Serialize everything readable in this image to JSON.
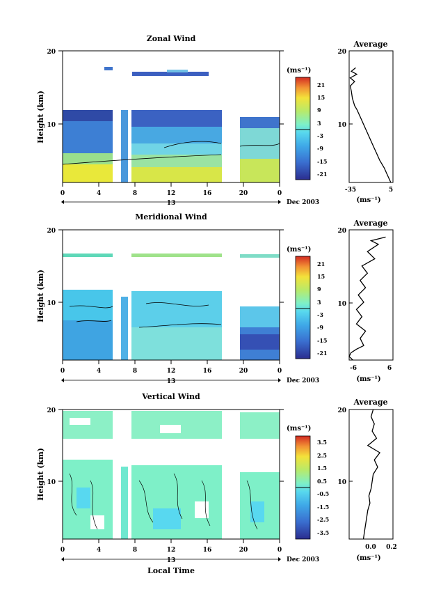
{
  "date_label": "Dec 2003",
  "xlabel": "Local Time",
  "chart_data": [
    {
      "type": "heatmap",
      "title": "Zonal Wind",
      "ylabel": "Height (km)",
      "unit": "(ms⁻¹)",
      "xticks": [
        "0",
        "4",
        "8",
        "12",
        "16",
        "20",
        "0"
      ],
      "day_label": "13",
      "yticks": [
        "10",
        "20"
      ],
      "ylim": [
        2,
        20
      ],
      "colorbar_ticks": [
        "21",
        "15",
        "9",
        "3",
        "-3",
        "-9",
        "-15",
        "-21"
      ],
      "colorbar_range": [
        -24,
        24
      ],
      "average": {
        "title": "Average",
        "xticks": [
          "-35",
          "5"
        ],
        "xlim": [
          -35,
          5
        ],
        "xunit": "(ms⁻¹)",
        "yticks": [
          "10",
          "20"
        ],
        "height_km": [
          2,
          3,
          4,
          5,
          6,
          7,
          8,
          9,
          10,
          11,
          12,
          12.5,
          13.5,
          14.5,
          15.2,
          15.8,
          16.3,
          16.8,
          17.2,
          17.7
        ],
        "wind_ms": [
          3,
          0,
          -3,
          -7,
          -10,
          -13,
          -16,
          -19,
          -22,
          -25,
          -28,
          -30,
          -32,
          -33,
          -34,
          -30,
          -34,
          -28,
          -33,
          -29
        ]
      }
    },
    {
      "type": "heatmap",
      "title": "Meridional Wind",
      "ylabel": "Height (km)",
      "unit": "(ms⁻¹)",
      "xticks": [
        "0",
        "4",
        "8",
        "12",
        "16",
        "20",
        "0"
      ],
      "day_label": "13",
      "yticks": [
        "10",
        "20"
      ],
      "ylim": [
        2,
        20
      ],
      "colorbar_ticks": [
        "21",
        "15",
        "9",
        "3",
        "-3",
        "-9",
        "-15",
        "-21"
      ],
      "colorbar_range": [
        -24,
        24
      ],
      "average": {
        "title": "Average",
        "xticks": [
          "-6",
          "6"
        ],
        "xlim": [
          -6,
          6
        ],
        "xunit": "(ms⁻¹)",
        "yticks": [
          "10",
          "20"
        ],
        "height_km": [
          2,
          2.5,
          3,
          3.5,
          4,
          5,
          6,
          7,
          8,
          9,
          10,
          11,
          12,
          13,
          14,
          15,
          16,
          17,
          18,
          18.5,
          19
        ],
        "wind_ms": [
          -5,
          -6,
          -5.5,
          -4,
          -2,
          -3,
          -1.5,
          -4,
          -2.5,
          -4,
          -2,
          -3.5,
          -1.5,
          -3,
          -1,
          -2.5,
          1,
          -1,
          2,
          0,
          4
        ]
      }
    },
    {
      "type": "heatmap",
      "title": "Vertical Wind",
      "ylabel": "Height (km)",
      "unit": "(ms⁻¹)",
      "xticks": [
        "0",
        "4",
        "8",
        "12",
        "16",
        "20",
        "0"
      ],
      "day_label": "13",
      "yticks": [
        "10",
        "20"
      ],
      "ylim": [
        2,
        20
      ],
      "colorbar_ticks": [
        "3.5",
        "2.5",
        "1.5",
        "0.5",
        "-0.5",
        "-1.5",
        "-2.5",
        "-3.5"
      ],
      "colorbar_range": [
        -4,
        4
      ],
      "average": {
        "title": "Average",
        "xticks": [
          "0.0",
          "0.2"
        ],
        "xlim": [
          -0.2,
          0.2
        ],
        "xunit": "(ms⁻¹)",
        "yticks": [
          "10",
          "20"
        ],
        "height_km": [
          2,
          3,
          4,
          5,
          6,
          7,
          8,
          9,
          10,
          11,
          12,
          13,
          14,
          15,
          16,
          17,
          18,
          19,
          20
        ],
        "wind_ms": [
          -0.07,
          -0.06,
          -0.05,
          -0.04,
          -0.03,
          -0.01,
          -0.02,
          0.0,
          0.01,
          0.02,
          0.06,
          0.03,
          0.08,
          -0.03,
          0.05,
          0.01,
          0.03,
          0.0,
          0.02
        ]
      }
    }
  ]
}
